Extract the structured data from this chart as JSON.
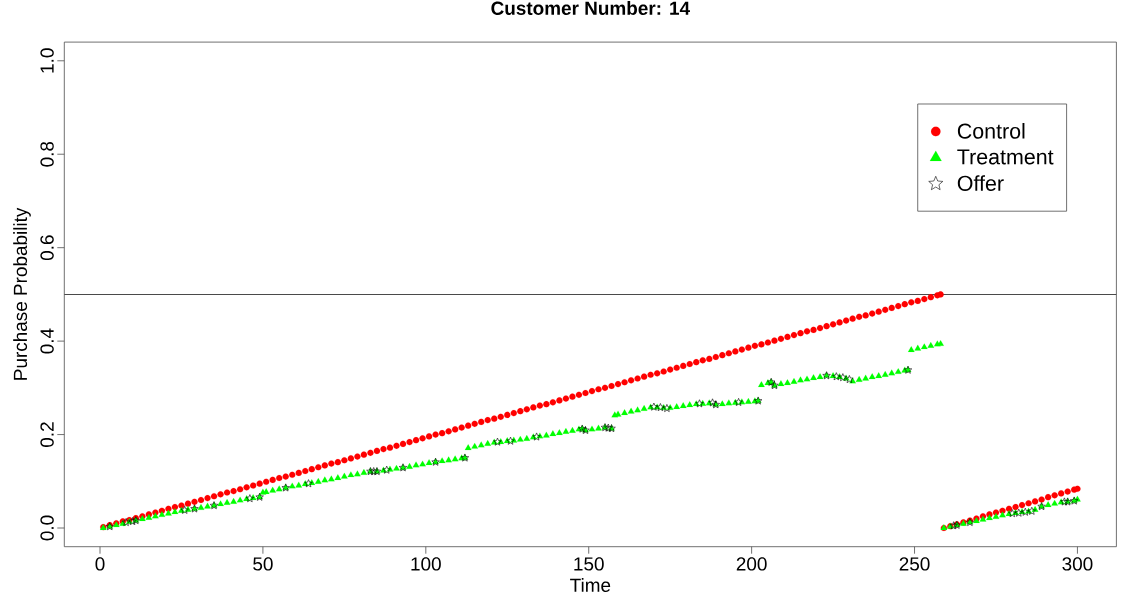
{
  "chart_data": {
    "type": "scatter",
    "title": "Customer Number: 14",
    "xlabel": "Time",
    "ylabel": "Purchase Probability",
    "xlim": [
      -10.96,
      311.96
    ],
    "ylim": [
      -0.04,
      1.04
    ],
    "xticks": [
      0,
      50,
      100,
      150,
      200,
      250,
      300
    ],
    "yticks": [
      {
        "value": 0,
        "label": "0.0"
      },
      {
        "value": 0.2,
        "label": "0.2"
      },
      {
        "value": 0.4,
        "label": "0.4"
      },
      {
        "value": 0.6,
        "label": "0.6"
      },
      {
        "value": 0.8,
        "label": "0.8"
      },
      {
        "value": 1,
        "label": "1.0"
      }
    ],
    "legend": "top right",
    "ref_lines": [
      {
        "axis": "y",
        "value": 0.5,
        "color": "#000000"
      }
    ],
    "series": [
      {
        "name": "Control",
        "color": "#ff0000",
        "marker": "circle",
        "x": [
          1,
          3,
          5,
          7,
          9,
          11,
          13,
          15,
          17,
          19,
          21,
          23,
          25,
          27,
          29,
          31,
          33,
          35,
          37,
          39,
          41,
          43,
          45,
          47,
          49,
          51,
          53,
          55,
          57,
          59,
          61,
          63,
          65,
          67,
          69,
          71,
          73,
          75,
          77,
          79,
          81,
          83,
          85,
          87,
          89,
          91,
          93,
          95,
          97,
          99,
          101,
          103,
          105,
          107,
          109,
          111,
          113,
          115,
          117,
          119,
          121,
          123,
          125,
          127,
          129,
          131,
          133,
          135,
          137,
          139,
          141,
          143,
          145,
          147,
          149,
          151,
          153,
          155,
          157,
          159,
          161,
          163,
          165,
          167,
          169,
          171,
          173,
          175,
          177,
          179,
          181,
          183,
          185,
          187,
          189,
          191,
          193,
          195,
          197,
          199,
          201,
          203,
          205,
          207,
          209,
          211,
          213,
          215,
          217,
          219,
          221,
          223,
          225,
          227,
          229,
          231,
          233,
          235,
          237,
          239,
          241,
          243,
          245,
          247,
          249,
          251,
          253,
          255,
          257,
          258,
          259,
          261,
          263,
          265,
          267,
          269,
          271,
          273,
          275,
          277,
          279,
          281,
          283,
          285,
          287,
          289,
          291,
          293,
          295,
          297,
          299,
          300
        ],
        "values": [
          0.002,
          0.006,
          0.01,
          0.014,
          0.017,
          0.021,
          0.025,
          0.029,
          0.033,
          0.037,
          0.041,
          0.045,
          0.048,
          0.052,
          0.056,
          0.06,
          0.064,
          0.068,
          0.072,
          0.076,
          0.079,
          0.083,
          0.087,
          0.091,
          0.095,
          0.099,
          0.103,
          0.107,
          0.11,
          0.114,
          0.118,
          0.122,
          0.126,
          0.13,
          0.134,
          0.138,
          0.141,
          0.145,
          0.149,
          0.153,
          0.157,
          0.161,
          0.165,
          0.169,
          0.172,
          0.176,
          0.18,
          0.184,
          0.188,
          0.192,
          0.196,
          0.2,
          0.203,
          0.207,
          0.211,
          0.215,
          0.219,
          0.223,
          0.227,
          0.231,
          0.234,
          0.238,
          0.242,
          0.246,
          0.25,
          0.254,
          0.258,
          0.262,
          0.265,
          0.269,
          0.273,
          0.277,
          0.281,
          0.285,
          0.289,
          0.293,
          0.297,
          0.3,
          0.304,
          0.308,
          0.312,
          0.316,
          0.32,
          0.324,
          0.328,
          0.331,
          0.335,
          0.339,
          0.343,
          0.347,
          0.351,
          0.355,
          0.359,
          0.362,
          0.366,
          0.37,
          0.374,
          0.378,
          0.382,
          0.386,
          0.39,
          0.393,
          0.397,
          0.401,
          0.405,
          0.409,
          0.413,
          0.417,
          0.421,
          0.424,
          0.428,
          0.432,
          0.436,
          0.44,
          0.444,
          0.448,
          0.452,
          0.455,
          0.459,
          0.463,
          0.467,
          0.471,
          0.475,
          0.479,
          0.483,
          0.486,
          0.49,
          0.494,
          0.498,
          0.5,
          0.0,
          0.004,
          0.008,
          0.012,
          0.016,
          0.02,
          0.025,
          0.029,
          0.033,
          0.037,
          0.041,
          0.045,
          0.049,
          0.053,
          0.057,
          0.061,
          0.066,
          0.07,
          0.074,
          0.078,
          0.082,
          0.084
        ]
      },
      {
        "name": "Treatment",
        "color": "#00ff00",
        "marker": "triangle",
        "x": [
          1,
          3,
          5,
          7,
          9,
          11,
          13,
          15,
          17,
          19,
          21,
          23,
          25,
          27,
          29,
          31,
          33,
          35,
          37,
          39,
          41,
          43,
          45,
          47,
          49,
          50,
          51,
          53,
          55,
          57,
          59,
          61,
          63,
          65,
          67,
          69,
          71,
          73,
          75,
          77,
          79,
          81,
          83,
          85,
          87,
          89,
          91,
          93,
          95,
          97,
          99,
          101,
          103,
          105,
          107,
          109,
          111,
          112,
          113,
          115,
          117,
          119,
          121,
          123,
          125,
          127,
          129,
          131,
          133,
          135,
          137,
          139,
          141,
          143,
          145,
          147,
          148,
          149,
          151,
          153,
          155,
          157,
          158,
          159,
          161,
          163,
          165,
          167,
          169,
          171,
          173,
          175,
          177,
          179,
          181,
          183,
          185,
          187,
          189,
          191,
          193,
          195,
          197,
          199,
          201,
          202,
          203,
          205,
          206,
          207,
          209,
          211,
          213,
          215,
          217,
          219,
          221,
          223,
          225,
          227,
          229,
          231,
          233,
          235,
          237,
          239,
          241,
          243,
          245,
          247,
          248,
          249,
          251,
          253,
          255,
          257,
          258,
          259,
          261,
          263,
          265,
          267,
          269,
          271,
          273,
          275,
          277,
          279,
          281,
          283,
          285,
          287,
          289,
          291,
          293,
          295,
          297,
          299,
          300
        ],
        "values": [
          0.0,
          0.003,
          0.006,
          0.009,
          0.013,
          0.016,
          0.019,
          0.022,
          0.025,
          0.028,
          0.031,
          0.034,
          0.037,
          0.039,
          0.041,
          0.043,
          0.046,
          0.048,
          0.051,
          0.054,
          0.056,
          0.059,
          0.062,
          0.064,
          0.066,
          0.076,
          0.077,
          0.08,
          0.083,
          0.086,
          0.089,
          0.091,
          0.094,
          0.096,
          0.099,
          0.102,
          0.104,
          0.107,
          0.11,
          0.113,
          0.115,
          0.118,
          0.121,
          0.121,
          0.123,
          0.125,
          0.127,
          0.129,
          0.131,
          0.134,
          0.136,
          0.139,
          0.141,
          0.143,
          0.145,
          0.147,
          0.149,
          0.15,
          0.171,
          0.174,
          0.177,
          0.18,
          0.183,
          0.184,
          0.186,
          0.187,
          0.189,
          0.191,
          0.194,
          0.196,
          0.198,
          0.201,
          0.203,
          0.206,
          0.208,
          0.211,
          0.212,
          0.209,
          0.211,
          0.213,
          0.215,
          0.213,
          0.241,
          0.243,
          0.246,
          0.249,
          0.252,
          0.255,
          0.258,
          0.258,
          0.257,
          0.257,
          0.259,
          0.261,
          0.263,
          0.265,
          0.266,
          0.267,
          0.264,
          0.265,
          0.267,
          0.268,
          0.269,
          0.27,
          0.271,
          0.272,
          0.306,
          0.31,
          0.312,
          0.305,
          0.308,
          0.31,
          0.313,
          0.316,
          0.318,
          0.321,
          0.323,
          0.326,
          0.325,
          0.323,
          0.32,
          0.314,
          0.317,
          0.32,
          0.323,
          0.325,
          0.328,
          0.331,
          0.334,
          0.337,
          0.338,
          0.381,
          0.384,
          0.387,
          0.39,
          0.393,
          0.394,
          0.0,
          0.003,
          0.006,
          0.009,
          0.012,
          0.015,
          0.018,
          0.021,
          0.024,
          0.027,
          0.03,
          0.032,
          0.034,
          0.035,
          0.039,
          0.046,
          0.049,
          0.052,
          0.055,
          0.056,
          0.058,
          0.061
        ]
      },
      {
        "name": "Offer",
        "color": "#000000",
        "marker": "star",
        "x": [
          3,
          8,
          10,
          11,
          26,
          29,
          35,
          46,
          49,
          57,
          64,
          83,
          84,
          85,
          88,
          93,
          103,
          112,
          122,
          126,
          134,
          148,
          149,
          155,
          156,
          157,
          170,
          172,
          174,
          184,
          188,
          189,
          196,
          202,
          206,
          207,
          223,
          226,
          228,
          230,
          248,
          262,
          263,
          267,
          280,
          282,
          284,
          286,
          289,
          296,
          297,
          299
        ],
        "values": [
          0.003,
          0.012,
          0.014,
          0.016,
          0.038,
          0.041,
          0.048,
          0.063,
          0.066,
          0.086,
          0.095,
          0.121,
          0.121,
          0.121,
          0.124,
          0.129,
          0.141,
          0.15,
          0.184,
          0.186,
          0.195,
          0.212,
          0.209,
          0.215,
          0.214,
          0.213,
          0.259,
          0.258,
          0.256,
          0.266,
          0.268,
          0.264,
          0.269,
          0.272,
          0.312,
          0.305,
          0.326,
          0.324,
          0.322,
          0.318,
          0.338,
          0.005,
          0.006,
          0.012,
          0.031,
          0.032,
          0.034,
          0.036,
          0.046,
          0.056,
          0.056,
          0.058
        ]
      }
    ]
  }
}
